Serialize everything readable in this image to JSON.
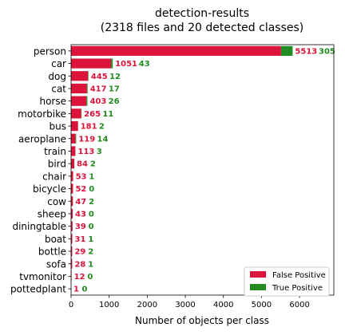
{
  "chart_data": {
    "type": "bar",
    "orientation": "horizontal",
    "stacked": true,
    "title": "detection-results",
    "subtitle": "(2318 files and 20 detected classes)",
    "xlabel": "Number of objects per class",
    "ylabel": "",
    "xlim": [
      0,
      6900
    ],
    "x_ticks": [
      0,
      1000,
      2000,
      3000,
      4000,
      5000,
      6000
    ],
    "categories": [
      "person",
      "car",
      "dog",
      "cat",
      "horse",
      "motorbike",
      "bus",
      "aeroplane",
      "train",
      "bird",
      "chair",
      "bicycle",
      "cow",
      "sheep",
      "diningtable",
      "boat",
      "bottle",
      "sofa",
      "tvmonitor",
      "pottedplant"
    ],
    "series": [
      {
        "name": "False Positive",
        "color": "#dc143c",
        "values": [
          5513,
          1051,
          445,
          417,
          403,
          265,
          181,
          119,
          113,
          84,
          53,
          52,
          47,
          43,
          39,
          31,
          29,
          28,
          12,
          1
        ]
      },
      {
        "name": "True Positive",
        "color": "#228b22",
        "values": [
          305,
          43,
          12,
          17,
          26,
          11,
          2,
          14,
          3,
          2,
          1,
          0,
          2,
          0,
          0,
          1,
          2,
          1,
          0,
          0
        ]
      }
    ],
    "legend": "bottom-right",
    "grid": false
  }
}
